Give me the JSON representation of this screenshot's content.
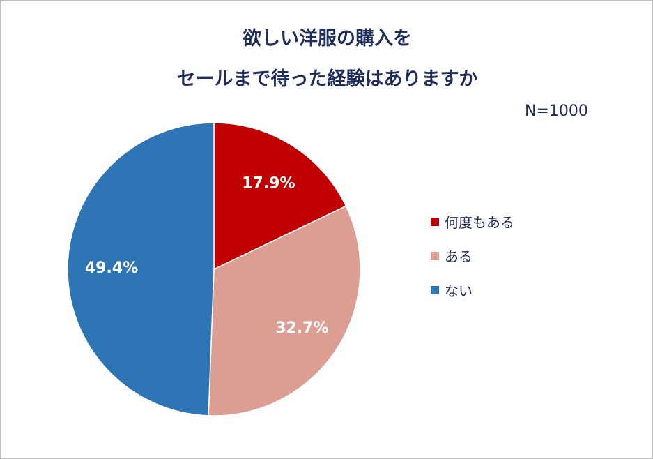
{
  "chart_data": {
    "type": "pie",
    "title_lines": [
      "欲しい洋服の購入を",
      "セールまで待った経験はありますか"
    ],
    "note": "N=1000",
    "categories": [
      "何度もある",
      "ある",
      "ない"
    ],
    "values": [
      17.9,
      32.7,
      49.4
    ],
    "labels": [
      "17.9%",
      "32.7%",
      "49.4%"
    ],
    "colors": [
      "#c00000",
      "#dc9d93",
      "#2e75b6"
    ],
    "legend_position": "right"
  }
}
